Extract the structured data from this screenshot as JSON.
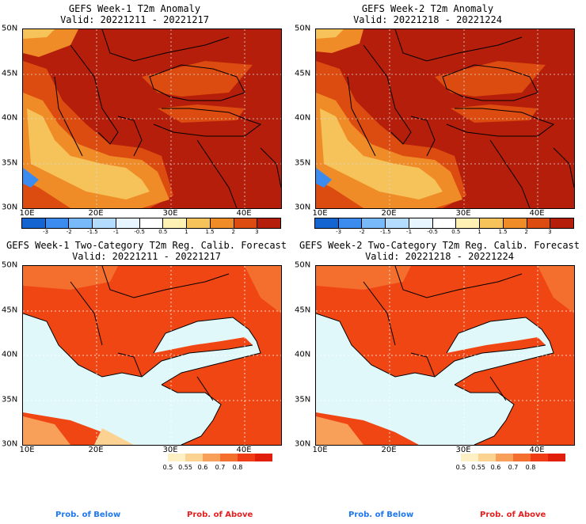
{
  "panels": [
    {
      "title": "GEFS Week-1 T2m Anomaly",
      "valid": "Valid: 20221211 - 20221217"
    },
    {
      "title": "GEFS Week-2 T2m Anomaly",
      "valid": "Valid: 20221218 - 20221224"
    },
    {
      "title": "GEFS Week-1 Two-Category T2m Reg. Calib. Forecast",
      "valid": "Valid: 20221211 - 20221217"
    },
    {
      "title": "GEFS Week-2 Two-Category T2m Reg. Calib. Forecast",
      "valid": "Valid: 20221218 - 20221224"
    }
  ],
  "axes": {
    "lat_labels": [
      "50N",
      "45N",
      "40N",
      "35N",
      "30N"
    ],
    "lon_labels": [
      "10E",
      "20E",
      "30E",
      "40E"
    ]
  },
  "anomaly_colorbar": {
    "labels": [
      "-3",
      "-2",
      "-1.5",
      "-1",
      "-0.5",
      "0.5",
      "1",
      "1.5",
      "2",
      "3"
    ],
    "colors": [
      "#1464d2",
      "#3c8cf0",
      "#78b9fa",
      "#b4dcff",
      "#e6f5ff",
      "#ffffff",
      "#fff0b4",
      "#f5c35a",
      "#f08c28",
      "#dc4b0f",
      "#b41e0a"
    ]
  },
  "prob_colorbar": {
    "labels": [
      "0.5",
      "0.55",
      "0.6",
      "0.7",
      "0.8"
    ],
    "colors": [
      "#fff0c3",
      "#fcd292",
      "#f8a05a",
      "#f46e2d",
      "#f03c14",
      "#e01e0a"
    ]
  },
  "legend": {
    "below": "Prob. of Below",
    "above": "Prob. of Above"
  },
  "colors": {
    "below_text": "#1e78f0",
    "above_text": "#e61e1e",
    "sea_prob": "#e0f8fa",
    "land_prob": "#f04614",
    "anom_dark": "#b41e0a",
    "anom_mid": "#dc4b0f",
    "anom_light": "#f08c28",
    "anom_pale": "#f5c35a"
  }
}
